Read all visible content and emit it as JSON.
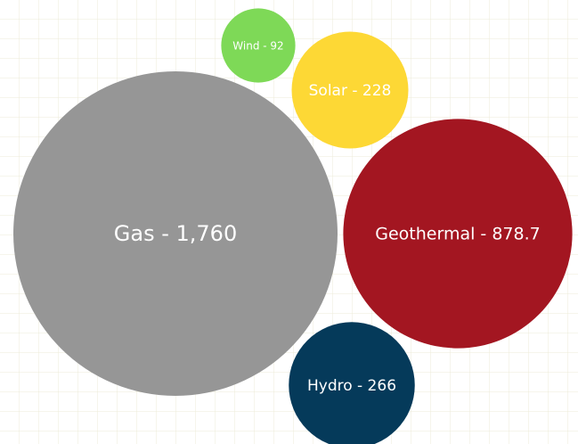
{
  "chart_data": {
    "type": "bubble",
    "values": [
      1760,
      878.7,
      92,
      228,
      266
    ],
    "value_labels": [
      "Gas - 1,760",
      "Geothermal - 878.7",
      "Wind - 92",
      "Solar - 228",
      "Hydro - 266"
    ],
    "colors": [
      "#969696",
      "#a31621",
      "#7ed957",
      "#fdd835",
      "#053a5a"
    ]
  }
}
